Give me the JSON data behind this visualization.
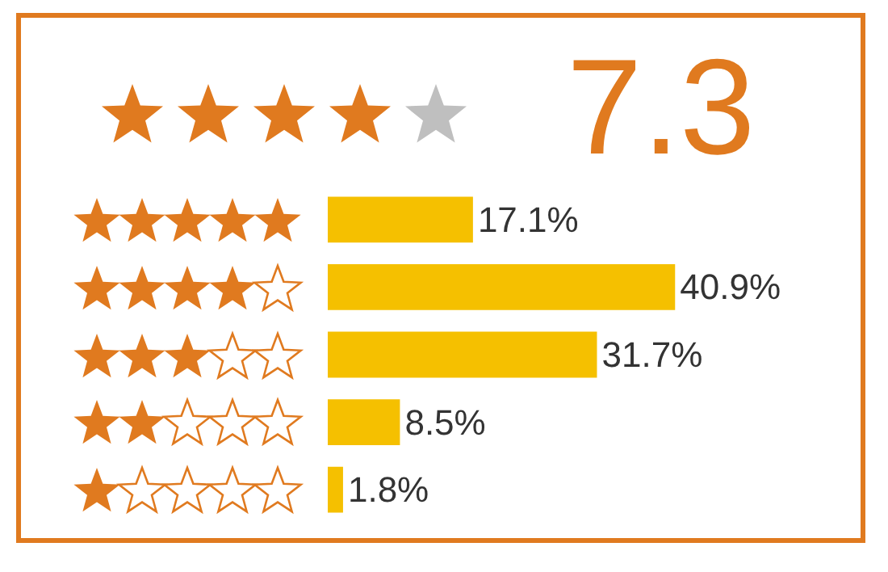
{
  "chart_data": {
    "type": "bar",
    "orientation": "horizontal",
    "categories": [
      null,
      null,
      null,
      null,
      null
    ],
    "values": [
      17.1,
      40.9,
      31.7,
      8.5,
      1.8
    ],
    "value_labels": [
      "17.1%",
      "40.9%",
      "31.7%",
      "8.5%",
      "1.8%"
    ],
    "color": "#f5c000",
    "annotations": [
      "7.3"
    ]
  }
}
